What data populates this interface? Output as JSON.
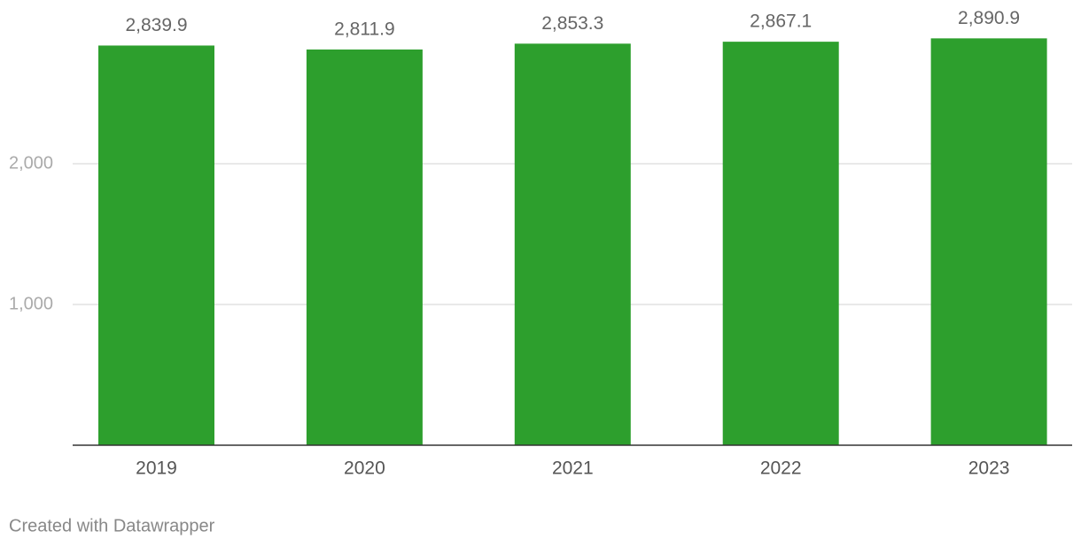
{
  "chart_data": {
    "type": "bar",
    "categories": [
      "2019",
      "2020",
      "2021",
      "2022",
      "2023"
    ],
    "values": [
      2839.9,
      2811.9,
      2853.3,
      2867.1,
      2890.9
    ],
    "value_labels": [
      "2,839.9",
      "2,811.9",
      "2,853.3",
      "2,867.1",
      "2,890.9"
    ],
    "color": "#2d9f2d",
    "ylim": [
      0,
      3000
    ],
    "yticks": [
      {
        "value": 1000,
        "label": "1,000"
      },
      {
        "value": 2000,
        "label": "2,000"
      }
    ],
    "grid": true,
    "credit": "Created with Datawrapper"
  }
}
